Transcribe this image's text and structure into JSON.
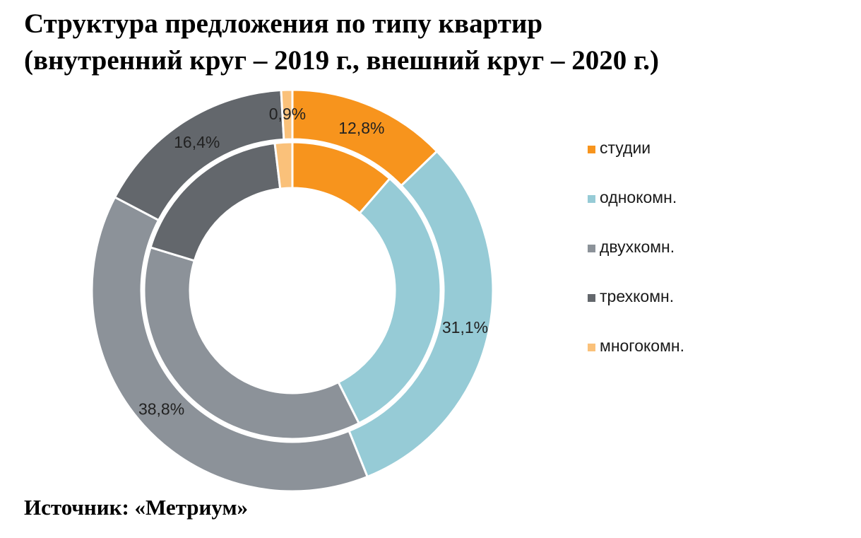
{
  "chart_data": {
    "type": "pie",
    "title_line1": "Структура предложения по типу квартир",
    "title_line2": "(внутренний круг – 2019 г., внешний круг – 2020 г.)",
    "source": "Источник: «Метриум»",
    "legend_position": "right",
    "categories": [
      "студии",
      "однокомн.",
      "двухкомн.",
      "трехкомн.",
      "многокомн."
    ],
    "colors": [
      "#F7941D",
      "#96CBD6",
      "#8C9299",
      "#63676C",
      "#FAC17A"
    ],
    "series": [
      {
        "name": "2020",
        "ring": "outer",
        "values": [
          12.8,
          31.1,
          38.8,
          16.4,
          0.9
        ],
        "labels": [
          "12,8%",
          "31,1%",
          "38,8%",
          "16,4%",
          "0,9%"
        ]
      },
      {
        "name": "2019",
        "ring": "inner",
        "values": [
          11.4,
          31.2,
          37.1,
          18.4,
          1.9
        ]
      }
    ]
  }
}
